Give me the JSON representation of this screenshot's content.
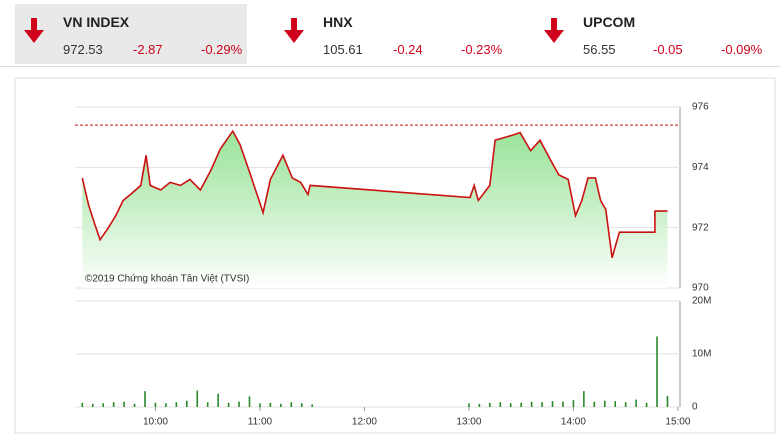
{
  "indices": [
    {
      "name": "VN INDEX",
      "value": "972.53",
      "change": "-2.87",
      "percent": "-0.29%"
    },
    {
      "name": "HNX",
      "value": "105.61",
      "change": "-0.24",
      "percent": "-0.23%"
    },
    {
      "name": "UPCOM",
      "value": "56.55",
      "change": "-0.05",
      "percent": "-0.09%"
    }
  ],
  "chart_data": [
    {
      "type": "area",
      "color": "#cc1111",
      "fill": "#8fe08f",
      "reference": 975.4,
      "reference_color": "#cc1111",
      "annotation": "©2019 Chứng khoán Tân Việt (TVSI)",
      "xlim": [
        9.23,
        15.02
      ],
      "ylim": [
        970,
        976
      ],
      "yticks": [
        970,
        972,
        974,
        976
      ],
      "x": [
        9.3,
        9.36,
        9.42,
        9.47,
        9.55,
        9.62,
        9.69,
        9.76,
        9.86,
        9.91,
        9.95,
        10.05,
        10.14,
        10.24,
        10.33,
        10.43,
        10.53,
        10.62,
        10.74,
        10.81,
        10.91,
        11.03,
        11.1,
        11.22,
        11.31,
        11.39,
        11.46,
        11.48,
        13.01,
        13.05,
        13.09,
        13.2,
        13.25,
        13.4,
        13.49,
        13.59,
        13.68,
        13.78,
        13.86,
        13.95,
        14.02,
        14.08,
        14.14,
        14.21,
        14.26,
        14.31,
        14.37,
        14.44,
        14.78,
        14.78,
        14.9
      ],
      "values": [
        973.65,
        972.75,
        972.1,
        971.6,
        972.0,
        972.4,
        972.9,
        973.1,
        973.4,
        974.4,
        973.4,
        973.25,
        973.5,
        973.4,
        973.6,
        973.25,
        973.9,
        974.6,
        975.2,
        974.75,
        973.75,
        972.5,
        973.6,
        974.4,
        973.65,
        973.5,
        973.1,
        973.4,
        973.0,
        973.4,
        972.9,
        973.4,
        974.9,
        975.05,
        975.15,
        974.55,
        974.9,
        974.25,
        973.75,
        973.6,
        972.4,
        972.9,
        973.65,
        973.65,
        972.9,
        972.6,
        971.0,
        971.85,
        971.85,
        972.55,
        972.55
      ]
    },
    {
      "type": "bar",
      "color": "#2a8a2a",
      "xlim": [
        9.23,
        15.02
      ],
      "ylim": [
        0,
        20000000
      ],
      "yticks": [
        0,
        {
          "value": 10000000,
          "label": "10M"
        },
        {
          "value": 20000000,
          "label": "20M"
        }
      ],
      "xticks": [
        {
          "value": 10,
          "label": "10:00"
        },
        {
          "value": 11,
          "label": "11:00"
        },
        {
          "value": 12,
          "label": "12:00"
        },
        {
          "value": 13,
          "label": "13:00"
        },
        {
          "value": 14,
          "label": "14:00"
        },
        {
          "value": 15,
          "label": "15:00"
        }
      ],
      "x": [
        9.3,
        9.4,
        9.5,
        9.6,
        9.7,
        9.8,
        9.9,
        10.0,
        10.1,
        10.2,
        10.3,
        10.4,
        10.5,
        10.6,
        10.7,
        10.8,
        10.9,
        11.0,
        11.1,
        11.2,
        11.3,
        11.4,
        11.5,
        13.0,
        13.1,
        13.2,
        13.3,
        13.4,
        13.5,
        13.6,
        13.7,
        13.8,
        13.9,
        14.0,
        14.1,
        14.2,
        14.3,
        14.4,
        14.5,
        14.6,
        14.7,
        14.8,
        14.9
      ],
      "values": [
        800000,
        600000,
        700000,
        900000,
        1000000,
        600000,
        3000000,
        800000,
        700000,
        900000,
        1200000,
        3100000,
        900000,
        2500000,
        800000,
        1000000,
        2000000,
        700000,
        800000,
        600000,
        900000,
        700000,
        500000,
        700000,
        600000,
        800000,
        900000,
        700000,
        800000,
        1000000,
        900000,
        1100000,
        1000000,
        1300000,
        3000000,
        1000000,
        1200000,
        1100000,
        900000,
        1400000,
        800000,
        13300000,
        2100000
      ]
    }
  ]
}
